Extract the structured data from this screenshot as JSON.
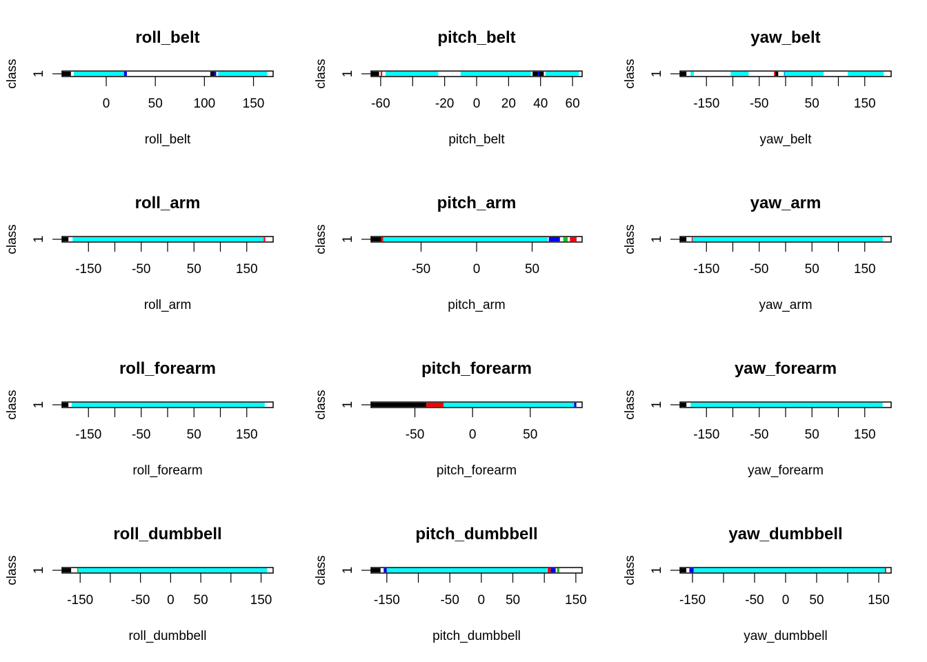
{
  "chart_data": [
    {
      "type": "scatter",
      "title": "roll_belt",
      "xlabel": "roll_belt",
      "ylabel": "class",
      "y_tick_labels": [
        "1"
      ],
      "xlim": [
        -45,
        170
      ],
      "ticks": [
        0,
        50,
        100,
        150
      ],
      "ticks_unlabeled": [],
      "series": [
        {
          "color": "#000000",
          "ranges": [
            [
              -45,
              -36
            ],
            [
              106,
              110
            ]
          ]
        },
        {
          "color": "#0000ff",
          "ranges": [
            [
              18,
              21
            ],
            [
              110,
              112
            ]
          ]
        },
        {
          "color": "#22bb22",
          "ranges": [
            [
              -33,
              -32
            ]
          ]
        },
        {
          "color": "#00ffff",
          "ranges": [
            [
              -33,
              18
            ],
            [
              114,
              164
            ]
          ]
        }
      ]
    },
    {
      "type": "scatter",
      "title": "pitch_belt",
      "xlabel": "pitch_belt",
      "ylabel": "class",
      "y_tick_labels": [
        "1"
      ],
      "xlim": [
        -66,
        66
      ],
      "ticks": [
        -60,
        -20,
        0,
        20,
        40,
        60
      ],
      "ticks_unlabeled": [
        -40
      ],
      "series": [
        {
          "color": "#000000",
          "ranges": [
            [
              -66,
              -61
            ],
            [
              35,
              42
            ]
          ]
        },
        {
          "color": "#ff0000",
          "ranges": [
            [
              -60,
              -59
            ]
          ]
        },
        {
          "color": "#0000ff",
          "ranges": [
            [
              38,
              39
            ]
          ]
        },
        {
          "color": "#00ffff",
          "ranges": [
            [
              -57,
              -24
            ],
            [
              -10,
              34
            ],
            [
              43,
              64
            ]
          ]
        }
      ]
    },
    {
      "type": "scatter",
      "title": "yaw_belt",
      "xlabel": "yaw_belt",
      "ylabel": "class",
      "y_tick_labels": [
        "1"
      ],
      "xlim": [
        -200,
        200
      ],
      "ticks": [
        -150,
        -50,
        50,
        150
      ],
      "ticks_unlabeled": [
        -100,
        0,
        100
      ],
      "series": [
        {
          "color": "#000000",
          "ranges": [
            [
              -200,
              -188
            ],
            [
              -20,
              -14
            ]
          ]
        },
        {
          "color": "#ff0000",
          "ranges": [
            [
              -178,
              -176
            ],
            [
              -22,
              -20
            ]
          ]
        },
        {
          "color": "#0000ff",
          "ranges": [
            [
              -3,
              -1
            ]
          ]
        },
        {
          "color": "#00ffff",
          "ranges": [
            [
              -180,
              -174
            ],
            [
              -104,
              -70
            ],
            [
              -2,
              72
            ],
            [
              118,
              186
            ]
          ]
        }
      ]
    },
    {
      "type": "scatter",
      "title": "roll_arm",
      "xlabel": "roll_arm",
      "ylabel": "class",
      "y_tick_labels": [
        "1"
      ],
      "xlim": [
        -200,
        200
      ],
      "ticks": [
        -150,
        -50,
        50,
        150
      ],
      "ticks_unlabeled": [
        -100,
        0,
        100
      ],
      "series": [
        {
          "color": "#000000",
          "ranges": [
            [
              -200,
              -188
            ]
          ]
        },
        {
          "color": "#ff0000",
          "ranges": [
            [
              -178,
              -176
            ],
            [
              182,
              185
            ]
          ]
        },
        {
          "color": "#22bb22",
          "ranges": [
            [
              -150,
              -148
            ]
          ]
        },
        {
          "color": "#00ffff",
          "ranges": [
            [
              -180,
              182
            ]
          ]
        }
      ]
    },
    {
      "type": "scatter",
      "title": "pitch_arm",
      "xlabel": "pitch_arm",
      "ylabel": "class",
      "y_tick_labels": [
        "1"
      ],
      "xlim": [
        -95,
        95
      ],
      "ticks": [
        -50,
        0,
        50
      ],
      "ticks_unlabeled": [],
      "series": [
        {
          "color": "#000000",
          "ranges": [
            [
              -95,
              -86
            ]
          ]
        },
        {
          "color": "#ff0000",
          "ranges": [
            [
              -86,
              -84
            ],
            [
              84,
              90
            ]
          ]
        },
        {
          "color": "#22bb22",
          "ranges": [
            [
              -81,
              -79
            ],
            [
              78,
              82
            ]
          ]
        },
        {
          "color": "#0000ff",
          "ranges": [
            [
              65,
              75
            ]
          ]
        },
        {
          "color": "#00ffff",
          "ranges": [
            [
              -84,
              64
            ]
          ]
        }
      ]
    },
    {
      "type": "scatter",
      "title": "yaw_arm",
      "xlabel": "yaw_arm",
      "ylabel": "class",
      "y_tick_labels": [
        "1"
      ],
      "xlim": [
        -200,
        200
      ],
      "ticks": [
        -150,
        -50,
        50,
        150
      ],
      "ticks_unlabeled": [
        -100,
        0,
        100
      ],
      "series": [
        {
          "color": "#000000",
          "ranges": [
            [
              -200,
              -188
            ]
          ]
        },
        {
          "color": "#ff0000",
          "ranges": [
            [
              -178,
              -176
            ],
            [
              174,
              176
            ]
          ]
        },
        {
          "color": "#22bb22",
          "ranges": [
            [
              -172,
              -140
            ]
          ]
        },
        {
          "color": "#00ffff",
          "ranges": [
            [
              -176,
              184
            ]
          ]
        }
      ]
    },
    {
      "type": "scatter",
      "title": "roll_forearm",
      "xlabel": "roll_forearm",
      "ylabel": "class",
      "y_tick_labels": [
        "1"
      ],
      "xlim": [
        -200,
        200
      ],
      "ticks": [
        -150,
        -50,
        50,
        150
      ],
      "ticks_unlabeled": [
        -100,
        0,
        100
      ],
      "series": [
        {
          "color": "#000000",
          "ranges": [
            [
              -200,
              -188
            ]
          ]
        },
        {
          "color": "#00ffff",
          "ranges": [
            [
              -182,
              184
            ]
          ]
        }
      ]
    },
    {
      "type": "scatter",
      "title": "pitch_forearm",
      "xlabel": "pitch_forearm",
      "ylabel": "class",
      "y_tick_labels": [
        "1"
      ],
      "xlim": [
        -88,
        95
      ],
      "ticks": [
        -50,
        0,
        50
      ],
      "ticks_unlabeled": [],
      "series": [
        {
          "color": "#000000",
          "ranges": [
            [
              -88,
              -40
            ]
          ]
        },
        {
          "color": "#ff0000",
          "ranges": [
            [
              -40,
              -25
            ]
          ]
        },
        {
          "color": "#0000ff",
          "ranges": [
            [
              88,
              90
            ]
          ]
        },
        {
          "color": "#00ffff",
          "ranges": [
            [
              -25,
              88
            ]
          ]
        }
      ]
    },
    {
      "type": "scatter",
      "title": "yaw_forearm",
      "xlabel": "yaw_forearm",
      "ylabel": "class",
      "y_tick_labels": [
        "1"
      ],
      "xlim": [
        -200,
        200
      ],
      "ticks": [
        -150,
        -50,
        50,
        150
      ],
      "ticks_unlabeled": [
        -100,
        0,
        100
      ],
      "series": [
        {
          "color": "#000000",
          "ranges": [
            [
              -200,
              -188
            ]
          ]
        },
        {
          "color": "#00ffff",
          "ranges": [
            [
              -180,
              184
            ]
          ]
        }
      ]
    },
    {
      "type": "scatter",
      "title": "roll_dumbbell",
      "xlabel": "roll_dumbbell",
      "ylabel": "class",
      "y_tick_labels": [
        "1"
      ],
      "xlim": [
        -180,
        170
      ],
      "ticks": [
        -150,
        -50,
        0,
        50,
        150
      ],
      "ticks_unlabeled": [
        -100,
        100
      ],
      "series": [
        {
          "color": "#000000",
          "ranges": [
            [
              -180,
              -165
            ]
          ]
        },
        {
          "color": "#22bb22",
          "ranges": [
            [
              -155,
              -153
            ]
          ]
        },
        {
          "color": "#0000ff",
          "ranges": [
            [
              155,
              158
            ]
          ]
        },
        {
          "color": "#00ffff",
          "ranges": [
            [
              -153,
              160
            ]
          ]
        }
      ]
    },
    {
      "type": "scatter",
      "title": "pitch_dumbbell",
      "xlabel": "pitch_dumbbell",
      "ylabel": "class",
      "y_tick_labels": [
        "1"
      ],
      "xlim": [
        -175,
        160
      ],
      "ticks": [
        -150,
        -50,
        0,
        50,
        150
      ],
      "ticks_unlabeled": [
        -100,
        100
      ],
      "series": [
        {
          "color": "#000000",
          "ranges": [
            [
              -175,
              -160
            ]
          ]
        },
        {
          "color": "#ff0000",
          "ranges": [
            [
              105,
              110
            ]
          ]
        },
        {
          "color": "#0000ff",
          "ranges": [
            [
              110,
              118
            ],
            [
              -155,
              -150
            ]
          ]
        },
        {
          "color": "#22bb22",
          "ranges": [
            [
              120,
              124
            ]
          ]
        },
        {
          "color": "#00ffff",
          "ranges": [
            [
              -150,
              104
            ]
          ]
        }
      ]
    },
    {
      "type": "scatter",
      "title": "yaw_dumbbell",
      "xlabel": "yaw_dumbbell",
      "ylabel": "class",
      "y_tick_labels": [
        "1"
      ],
      "xlim": [
        -170,
        170
      ],
      "ticks": [
        -150,
        -50,
        0,
        50,
        150
      ],
      "ticks_unlabeled": [
        -100,
        100
      ],
      "series": [
        {
          "color": "#000000",
          "ranges": [
            [
              -170,
              -160
            ]
          ]
        },
        {
          "color": "#0000ff",
          "ranges": [
            [
              -155,
              -148
            ]
          ]
        },
        {
          "color": "#ff0000",
          "ranges": [
            [
              158,
              162
            ]
          ]
        },
        {
          "color": "#00ffff",
          "ranges": [
            [
              -148,
              160
            ]
          ]
        }
      ]
    }
  ]
}
